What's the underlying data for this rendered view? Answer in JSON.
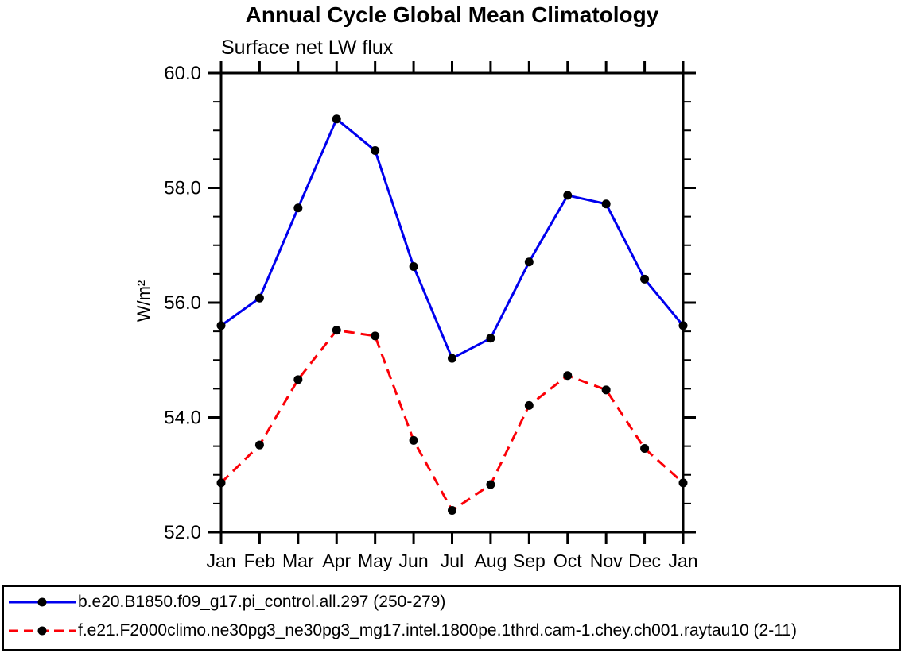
{
  "chart": {
    "title": "Annual Cycle Global Mean Climatology",
    "subtitle": "Surface net LW flux",
    "ylabel": "W/m²"
  },
  "chart_data": {
    "type": "line",
    "title": "Annual Cycle Global Mean Climatology",
    "subtitle": "Surface net LW flux",
    "xlabel": "",
    "ylabel": "W/m²",
    "categories": [
      "Jan",
      "Feb",
      "Mar",
      "Apr",
      "May",
      "Jun",
      "Jul",
      "Aug",
      "Sep",
      "Oct",
      "Nov",
      "Dec",
      "Jan"
    ],
    "series": [
      {
        "name": "b.e20.B1850.f09_g17.pi_control.all.297 (250-279)",
        "color": "#0000ee",
        "line_style": "solid",
        "marker": "circle",
        "marker_color": "#000000",
        "values": [
          55.6,
          56.08,
          57.65,
          59.2,
          58.65,
          56.63,
          55.03,
          55.38,
          56.71,
          57.87,
          57.72,
          56.41,
          55.6
        ]
      },
      {
        "name": "f.e21.F2000climo.ne30pg3_ne30pg3_mg17.intel.1800pe.1thrd.cam-1.chey.ch001.raytau10 (2-11)",
        "color": "#fb0007",
        "line_style": "dashed",
        "marker": "circle",
        "marker_color": "#000000",
        "values": [
          52.86,
          53.52,
          54.66,
          55.52,
          55.42,
          53.6,
          52.38,
          52.83,
          54.21,
          54.73,
          54.48,
          53.46,
          52.86
        ]
      }
    ],
    "ylim": [
      52.0,
      60.0
    ],
    "y_major_step": 2.0,
    "y_minor_step": 0.5,
    "y_tick_labels": [
      "52.0",
      "54.0",
      "56.0",
      "58.0",
      "60.0"
    ],
    "grid": false,
    "axis_color": "#000000",
    "legend_position": "bottom-left"
  },
  "legend": {
    "entries": [
      {
        "label": "b.e20.B1850.f09_g17.pi_control.all.297 (250-279)",
        "color": "#0000ee",
        "line_style": "solid"
      },
      {
        "label": "f.e21.F2000climo.ne30pg3_ne30pg3_mg17.intel.1800pe.1thrd.cam-1.chey.ch001.raytau10 (2-11)",
        "color": "#fb0007",
        "line_style": "dashed"
      }
    ]
  }
}
